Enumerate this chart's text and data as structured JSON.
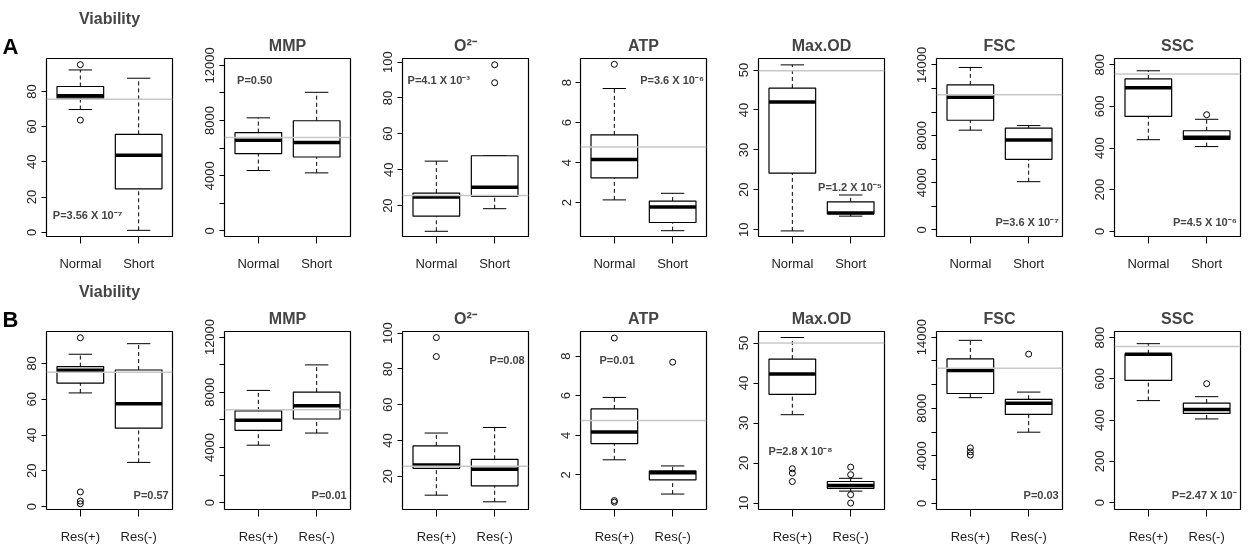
{
  "chart_data": [
    {
      "type": "box",
      "title": "Viability",
      "categories": [
        "Normal",
        "Short"
      ],
      "ylim": [
        -2.4,
        98.7
      ],
      "yticks": [
        0,
        20,
        40,
        60,
        80
      ],
      "boxes": [
        {
          "low": 69.7,
          "q1": 76.3,
          "median": 77.6,
          "q3": 82.8,
          "high": 92.2,
          "outliers": [
            95.2,
            63.7
          ]
        },
        {
          "low": 1.1,
          "q1": 24.7,
          "median": 43.8,
          "q3": 55.6,
          "high": 87.5
        }
      ],
      "ref_lines": [
        {
          "axis": "y",
          "value": 75.5,
          "color": "#c8c8c8"
        }
      ],
      "annotations": [
        "A",
        "P=3.56 X 10⁻⁷"
      ]
    },
    {
      "type": "box",
      "title": "MMP",
      "categories": [
        "Normal",
        "Short"
      ],
      "ylim": [
        -400,
        12500
      ],
      "yticks": [
        0,
        {
          "value": 2000,
          "label": null
        },
        4000,
        {
          "value": 6000,
          "label": null
        },
        8000,
        {
          "value": 10000,
          "label": null
        },
        12000
      ],
      "boxes": [
        {
          "low": 4380,
          "q1": 5600,
          "median": 6580,
          "q3": 7130,
          "high": 8200
        },
        {
          "low": 4210,
          "q1": 5360,
          "median": 6410,
          "q3": 7990,
          "high": 10050
        }
      ],
      "ref_lines": [
        {
          "axis": "y",
          "value": 6770,
          "color": "#c8c8c8"
        }
      ],
      "annotations": [
        "P=0.50"
      ]
    },
    {
      "type": "box",
      "title": "O²⁻",
      "categories": [
        "Normal",
        "Short"
      ],
      "ylim": [
        2.8,
        102
      ],
      "yticks": [
        20,
        40,
        60,
        80,
        100
      ],
      "boxes": [
        {
          "low": 5.7,
          "q1": 14.1,
          "median": 24.8,
          "q3": 27,
          "high": 44.8
        },
        {
          "low": 18.3,
          "q1": 25.2,
          "median": 30.2,
          "q3": 47.8,
          "high": 47.8,
          "outliers": [
            98.5,
            88.5
          ]
        }
      ],
      "ref_lines": [
        {
          "axis": "y",
          "value": 25.7,
          "color": "#c8c8c8"
        }
      ],
      "annotations": [
        "P=4.1 X 10⁻³"
      ]
    },
    {
      "type": "box",
      "title": "ATP",
      "categories": [
        "Normal",
        "Short"
      ],
      "ylim": [
        0.3,
        9.2
      ],
      "yticks": [
        2,
        4,
        6,
        8
      ],
      "boxes": [
        {
          "low": 2.13,
          "q1": 3.23,
          "median": 4.15,
          "q3": 5.38,
          "high": 7.7,
          "outliers": [
            8.91
          ]
        },
        {
          "low": 0.59,
          "q1": 1.0,
          "median": 1.77,
          "q3": 2.07,
          "high": 2.46
        }
      ],
      "ref_lines": [
        {
          "axis": "y",
          "value": 4.78,
          "color": "#c8c8c8"
        }
      ],
      "annotations": [
        "P=3.6 X 10⁻⁶"
      ]
    },
    {
      "type": "box",
      "title": "Max.OD",
      "categories": [
        "Normal",
        "Short"
      ],
      "ylim": [
        8.3,
        52.9
      ],
      "yticks": [
        10,
        20,
        30,
        40,
        50
      ],
      "boxes": [
        {
          "low": 9.7,
          "q1": 24.2,
          "median": 42.0,
          "q3": 45.5,
          "high": 51.3
        },
        {
          "low": 13.4,
          "q1": 14.0,
          "median": 14.2,
          "q3": 17.0,
          "high": 18.7
        }
      ],
      "ref_lines": [
        {
          "axis": "y",
          "value": 49.8,
          "color": "#c8c8c8"
        }
      ],
      "annotations": [
        "P=1.2 X 10⁻⁵"
      ]
    },
    {
      "type": "box",
      "title": "FSC",
      "categories": [
        "Normal",
        "Short"
      ],
      "ylim": [
        -560,
        14540
      ],
      "yticks": [
        0,
        {
          "value": 2000,
          "label": null
        },
        4000,
        {
          "value": 6000,
          "label": null
        },
        8000,
        {
          "value": 10000,
          "label": null
        },
        {
          "value": 12000,
          "label": null
        },
        14000
      ],
      "boxes": [
        {
          "low": 8460,
          "q1": 9300,
          "median": 11260,
          "q3": 12300,
          "high": 13780
        },
        {
          "low": 4090,
          "q1": 5990,
          "median": 7620,
          "q3": 8630,
          "high": 8850
        }
      ],
      "ref_lines": [
        {
          "axis": "y",
          "value": 11460,
          "color": "#c8c8c8"
        }
      ],
      "annotations": [
        "P=3.6 X 10⁻⁷"
      ]
    },
    {
      "type": "box",
      "title": "SSC",
      "categories": [
        "Normal",
        "Short"
      ],
      "ylim": [
        -25,
        830
      ],
      "yticks": [
        0,
        200,
        400,
        600,
        800
      ],
      "boxes": [
        {
          "low": 440,
          "q1": 552,
          "median": 690,
          "q3": 732,
          "high": 771
        },
        {
          "low": 407,
          "q1": 442,
          "median": 452,
          "q3": 483,
          "high": 538,
          "outliers": [
            560
          ]
        }
      ],
      "ref_lines": [
        {
          "axis": "y",
          "value": 755,
          "color": "#c8c8c8"
        }
      ],
      "annotations": [
        "P=4.5 X 10⁻⁶"
      ]
    },
    {
      "type": "box",
      "title": "Viability",
      "categories": [
        "Res(+)",
        "Res(-)"
      ],
      "ylim": [
        -1.6,
        97.8
      ],
      "yticks": [
        0,
        20,
        40,
        60,
        80
      ],
      "boxes": [
        {
          "low": 63.5,
          "q1": 69.0,
          "median": 76.2,
          "q3": 78.2,
          "high": 85.1,
          "outliers": [
            94.3,
            8.2,
            3.1,
            1.6
          ]
        },
        {
          "low": 24.7,
          "q1": 43.8,
          "median": 57.5,
          "q3": 76.3,
          "high": 91.0
        }
      ],
      "ref_lines": [
        {
          "axis": "y",
          "value": 75.1,
          "color": "#c8c8c8"
        }
      ],
      "annotations": [
        "B",
        "P=0.57"
      ]
    },
    {
      "type": "box",
      "title": "MMP",
      "categories": [
        "Res(+)",
        "Res(-)"
      ],
      "ylim": [
        -500,
        12400
      ],
      "yticks": [
        0,
        {
          "value": 2000,
          "label": null
        },
        4000,
        {
          "value": 6000,
          "label": null
        },
        8000,
        {
          "value": 10000,
          "label": null
        },
        12000
      ],
      "boxes": [
        {
          "low": 4160,
          "q1": 5230,
          "median": 5960,
          "q3": 6650,
          "high": 8130
        },
        {
          "low": 5040,
          "q1": 6060,
          "median": 7010,
          "q3": 8010,
          "high": 9980
        }
      ],
      "ref_lines": [
        {
          "axis": "y",
          "value": 6725,
          "color": "#c8c8c8"
        }
      ],
      "annotations": [
        "P=0.01"
      ]
    },
    {
      "type": "box",
      "title": "O²⁻",
      "categories": [
        "Res(+)",
        "Res(-)"
      ],
      "ylim": [
        1.5,
        100.9
      ],
      "yticks": [
        20,
        40,
        60,
        80,
        100
      ],
      "boxes": [
        {
          "low": 9.5,
          "q1": 24.5,
          "median": 26.4,
          "q3": 37,
          "high": 44.2,
          "outliers": [
            97.5,
            86.9
          ]
        },
        {
          "low": 5.8,
          "q1": 14.7,
          "median": 24.0,
          "q3": 29.5,
          "high": 47.3
        }
      ],
      "ref_lines": [
        {
          "axis": "y",
          "value": 25.6,
          "color": "#c8c8c8"
        }
      ],
      "annotations": [
        "P=0.08"
      ]
    },
    {
      "type": "box",
      "title": "ATP",
      "categories": [
        "Res(+)",
        "Res(-)"
      ],
      "ylim": [
        0.25,
        9.24
      ],
      "yticks": [
        2,
        4,
        6,
        8
      ],
      "boxes": [
        {
          "low": 2.76,
          "q1": 3.58,
          "median": 4.16,
          "q3": 5.33,
          "high": 5.91,
          "outliers": [
            8.91,
            0.7,
            0.62
          ]
        },
        {
          "low": 1.03,
          "q1": 1.75,
          "median": 2.1,
          "q3": 2.2,
          "high": 2.45,
          "outliers": [
            7.69
          ]
        }
      ],
      "ref_lines": [
        {
          "axis": "y",
          "value": 4.75,
          "color": "#c8c8c8"
        }
      ],
      "annotations": [
        "P=0.01"
      ]
    },
    {
      "type": "box",
      "title": "Max.OD",
      "categories": [
        "Res(+)",
        "Res(-)"
      ],
      "ylim": [
        8.4,
        52.9
      ],
      "yticks": [
        10,
        20,
        30,
        40,
        50
      ],
      "boxes": [
        {
          "low": 32.1,
          "q1": 37.2,
          "median": 42.3,
          "q3": 46.0,
          "high": 51.4,
          "outliers": [
            18.6,
            17.5,
            15.4
          ]
        },
        {
          "low": 13.0,
          "q1": 13.7,
          "median": 14.4,
          "q3": 15.4,
          "high": 16.2,
          "outliers": [
            19.0,
            17.1,
            12.1,
            10.0
          ]
        }
      ],
      "ref_lines": [
        {
          "axis": "y",
          "value": 50,
          "color": "#c8c8c8"
        }
      ],
      "annotations": [
        "P=2.8 X 10⁻⁸"
      ]
    },
    {
      "type": "box",
      "title": "FSC",
      "categories": [
        "Res(+)",
        "Res(-)"
      ],
      "ylim": [
        -525,
        14475
      ],
      "yticks": [
        0,
        {
          "value": 2000,
          "label": null
        },
        4000,
        {
          "value": 6000,
          "label": null
        },
        8000,
        {
          "value": 10000,
          "label": null
        },
        {
          "value": 12000,
          "label": null
        },
        14000
      ],
      "boxes": [
        {
          "low": 8900,
          "q1": 9250,
          "median": 11190,
          "q3": 12160,
          "high": 13730,
          "outliers": [
            4670,
            4340,
            4060
          ]
        },
        {
          "low": 5990,
          "q1": 7490,
          "median": 8430,
          "q3": 8760,
          "high": 9370,
          "outliers": [
            12570
          ]
        }
      ],
      "ref_lines": [
        {
          "axis": "y",
          "value": 11380,
          "color": "#c8c8c8"
        }
      ],
      "annotations": [
        "P=0.03"
      ]
    },
    {
      "type": "box",
      "title": "SSC",
      "categories": [
        "Res(+)",
        "Res(-)"
      ],
      "ylim": [
        -33,
        830
      ],
      "yticks": [
        0,
        200,
        400,
        600,
        800
      ],
      "boxes": [
        {
          "low": 495,
          "q1": 593,
          "median": 720,
          "q3": 722,
          "high": 771
        },
        {
          "low": 406,
          "q1": 433,
          "median": 452,
          "q3": 483,
          "high": 514,
          "outliers": [
            577
          ]
        }
      ],
      "ref_lines": [
        {
          "axis": "y",
          "value": 757,
          "color": "#c8c8c8"
        }
      ],
      "annotations": [
        "P=2.47 X 10⁻"
      ]
    }
  ]
}
